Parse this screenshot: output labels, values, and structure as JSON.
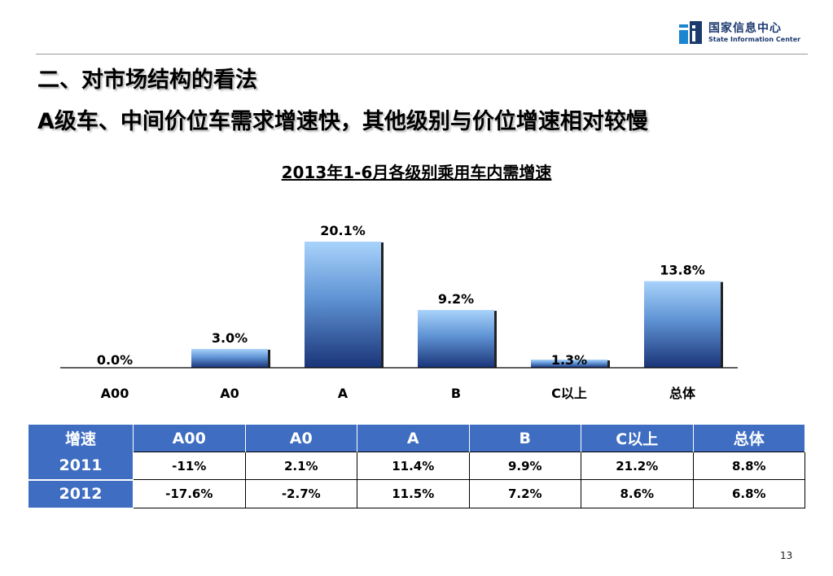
{
  "header": {
    "logo_cn": "国家信息中心",
    "logo_en": "State Information Center",
    "title_line1": "二、对市场结构的看法",
    "title_line2": "A级车、中间价位车需求增速快，其他级别与价位增速相对较慢"
  },
  "chart_data": {
    "type": "bar",
    "title": "2013年1-6月各级别乘用车内需增速",
    "categories": [
      "A00",
      "A0",
      "A",
      "B",
      "C以上",
      "总体"
    ],
    "values": [
      0.0,
      3.0,
      20.1,
      9.2,
      1.3,
      13.8
    ],
    "value_labels": [
      "0.0%",
      "3.0%",
      "20.1%",
      "9.2%",
      "1.3%",
      "13.8%"
    ],
    "xlabel": "",
    "ylabel": "",
    "ylim": [
      0,
      20.1
    ],
    "grid": false,
    "colors": {
      "bar_top": "#a9d3fb",
      "bar_bottom": "#1a3478",
      "bar_shadow": "#222222"
    }
  },
  "table": {
    "header": [
      "增速",
      "A00",
      "A0",
      "A",
      "B",
      "C以上",
      "总体"
    ],
    "rows": [
      {
        "label": "2011",
        "values": [
          "-11%",
          "2.1%",
          "11.4%",
          "9.9%",
          "21.2%",
          "8.8%"
        ]
      },
      {
        "label": "2012",
        "values": [
          "-17.6%",
          "-2.7%",
          "11.5%",
          "7.2%",
          "8.6%",
          "6.8%"
        ]
      }
    ],
    "colors": {
      "header_bg": "#3e6dc1"
    }
  },
  "page_number": "13"
}
